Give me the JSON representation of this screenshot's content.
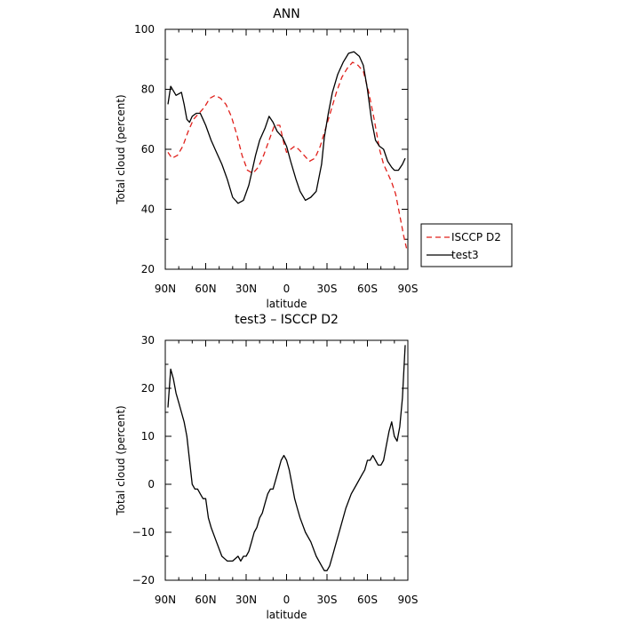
{
  "chart_data": [
    {
      "type": "line",
      "title": "ANN",
      "xlabel": "latitude",
      "ylabel": "Total cloud (percent)",
      "xlim": [
        90,
        -90
      ],
      "ylim": [
        20,
        100
      ],
      "x_ticks": [
        90,
        60,
        30,
        0,
        -30,
        -60,
        -90
      ],
      "x_tick_labels": [
        "90N",
        "60N",
        "30N",
        "0",
        "30S",
        "60S",
        "90S"
      ],
      "y_ticks": [
        20,
        40,
        60,
        80,
        100
      ],
      "y_tick_labels": [
        "20",
        "40",
        "60",
        "80",
        "100"
      ],
      "grid": false,
      "legend_position": "right, outside plot",
      "series": [
        {
          "name": "ISCCP D2",
          "color": "#e0201b",
          "style": "dashed",
          "x": [
            88,
            85,
            81,
            77,
            73,
            69,
            65,
            61,
            57,
            53,
            49,
            45,
            41,
            37,
            33,
            29,
            25,
            21,
            17,
            13,
            9,
            5,
            2,
            0,
            -3,
            -6,
            -9,
            -13,
            -17,
            -21,
            -25,
            -29,
            -33,
            -37,
            -41,
            -45,
            -49,
            -53,
            -57,
            -61,
            -65,
            -69,
            -72,
            -75,
            -78,
            -81,
            -84,
            -87,
            -89
          ],
          "y": [
            59,
            57,
            58,
            61,
            66,
            70,
            72,
            74,
            77,
            78,
            77,
            75,
            71,
            65,
            58,
            53,
            52,
            54,
            58,
            63,
            68,
            68,
            62,
            59,
            60,
            61,
            60,
            58,
            56,
            57,
            61,
            67,
            73,
            79,
            84,
            87,
            89,
            88,
            86,
            79,
            70,
            60,
            55,
            52,
            49,
            45,
            38,
            31,
            27
          ]
        },
        {
          "name": "test3",
          "color": "#000000",
          "style": "solid",
          "x": [
            88,
            86,
            82,
            78,
            76,
            74,
            72,
            70,
            67,
            64,
            62,
            60,
            56,
            52,
            48,
            44,
            40,
            36,
            32,
            28,
            26,
            23,
            20,
            16,
            13,
            10,
            7,
            3,
            0,
            -3,
            -7,
            -10,
            -14,
            -18,
            -22,
            -26,
            -28,
            -31,
            -34,
            -38,
            -42,
            -46,
            -50,
            -54,
            -57,
            -60,
            -63,
            -66,
            -69,
            -72,
            -75,
            -78,
            -80,
            -83,
            -86,
            -88
          ],
          "y": [
            75,
            81,
            78,
            79,
            75,
            70,
            69,
            71,
            72,
            72,
            70,
            68,
            63,
            59,
            55,
            50,
            44,
            42,
            43,
            48,
            52,
            58,
            63,
            67,
            71,
            69,
            66,
            64,
            61,
            56,
            50,
            46,
            43,
            44,
            46,
            55,
            64,
            72,
            79,
            85,
            89,
            92,
            92.5,
            91,
            88,
            80,
            70,
            63,
            61,
            60,
            56,
            54,
            53,
            53,
            55,
            57
          ]
        }
      ]
    },
    {
      "type": "line",
      "title": "test3 – ISCCP D2",
      "xlabel": "latitude",
      "ylabel": "Total cloud (percent)",
      "xlim": [
        90,
        -90
      ],
      "ylim": [
        -20,
        30
      ],
      "x_ticks": [
        90,
        60,
        30,
        0,
        -30,
        -60,
        -90
      ],
      "x_tick_labels": [
        "90N",
        "60N",
        "30N",
        "0",
        "30S",
        "60S",
        "90S"
      ],
      "y_ticks": [
        -20,
        -10,
        0,
        10,
        20,
        30
      ],
      "y_tick_labels": [
        "−20",
        "−10",
        "0",
        "10",
        "20",
        "30"
      ],
      "grid": false,
      "series": [
        {
          "color": "#000000",
          "style": "solid",
          "x": [
            88,
            86,
            84,
            82,
            80,
            78,
            76,
            74,
            72,
            70,
            68,
            66,
            64,
            62,
            60,
            58,
            56,
            52,
            48,
            44,
            40,
            36,
            34,
            32,
            30,
            28,
            26,
            24,
            22,
            20,
            18,
            16,
            14,
            12,
            10,
            8,
            6,
            4,
            2,
            0,
            -2,
            -4,
            -6,
            -8,
            -10,
            -14,
            -18,
            -22,
            -26,
            -28,
            -30,
            -32,
            -34,
            -36,
            -40,
            -44,
            -48,
            -52,
            -56,
            -58,
            -60,
            -62,
            -64,
            -66,
            -68,
            -70,
            -72,
            -74,
            -76,
            -78,
            -80,
            -82,
            -84,
            -86,
            -88
          ],
          "y": [
            16,
            24,
            22,
            19,
            17,
            15,
            13,
            10,
            5,
            0,
            -1,
            -1,
            -2,
            -3,
            -3,
            -7,
            -9,
            -12,
            -15,
            -16,
            -16,
            -15,
            -16,
            -15,
            -15,
            -14,
            -12,
            -10,
            -9,
            -7,
            -6,
            -4,
            -2,
            -1,
            -1,
            1,
            3,
            5,
            6,
            5,
            3,
            0,
            -3,
            -5,
            -7,
            -10,
            -12,
            -15,
            -17,
            -18,
            -18,
            -17,
            -15,
            -13,
            -9,
            -5,
            -2,
            0,
            2,
            3,
            5,
            5,
            6,
            5,
            4,
            4,
            5,
            8,
            11,
            13,
            10,
            9,
            12,
            18,
            29
          ]
        }
      ]
    }
  ]
}
